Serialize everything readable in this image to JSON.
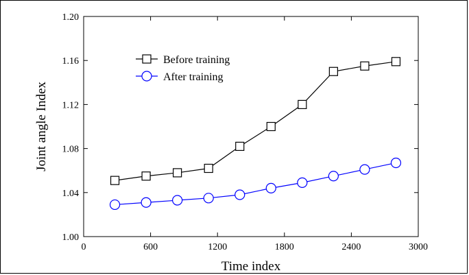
{
  "chart_data": {
    "type": "line",
    "xlabel": "Time index",
    "ylabel": "Joint angle Index",
    "xlim": [
      0,
      3000
    ],
    "ylim": [
      1.0,
      1.2
    ],
    "x_ticks": [
      0,
      600,
      1200,
      1800,
      2400,
      3000
    ],
    "x_tick_labels": [
      "0",
      "600",
      "1200",
      "1800",
      "2400",
      "3000"
    ],
    "y_ticks": [
      1.0,
      1.04,
      1.08,
      1.12,
      1.16,
      1.2
    ],
    "y_tick_labels": [
      "1.00",
      "1.04",
      "1.08",
      "1.12",
      "1.16",
      "1.20"
    ],
    "grid": false,
    "legend_position": "top-left",
    "x": [
      280,
      560,
      840,
      1120,
      1400,
      1680,
      1960,
      2240,
      2520,
      2800
    ],
    "series": [
      {
        "name": "Before training",
        "marker": "square",
        "color": "#000000",
        "values": [
          1.051,
          1.055,
          1.058,
          1.062,
          1.082,
          1.1,
          1.12,
          1.15,
          1.155,
          1.159
        ]
      },
      {
        "name": "After training",
        "marker": "circle",
        "color": "#0000ff",
        "values": [
          1.029,
          1.031,
          1.033,
          1.035,
          1.038,
          1.044,
          1.049,
          1.055,
          1.061,
          1.067
        ]
      }
    ]
  }
}
